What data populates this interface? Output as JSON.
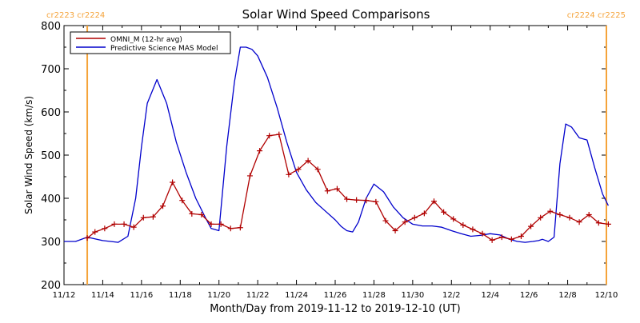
{
  "chart_data": {
    "type": "line",
    "title": "Solar Wind Speed Comparisons",
    "xlabel": "Month/Day from 2019-11-12 to 2019-12-10 (UT)",
    "ylabel": "Solar Wind Speed (km/s)",
    "x_unit": "days since 2019-11-12",
    "xlim": [
      0,
      28
    ],
    "ylim": [
      200,
      800
    ],
    "yticks": [
      200,
      300,
      400,
      500,
      600,
      700,
      800
    ],
    "xticks": [
      {
        "x": 0,
        "label": "11/12"
      },
      {
        "x": 2,
        "label": "11/14"
      },
      {
        "x": 4,
        "label": "11/16"
      },
      {
        "x": 6,
        "label": "11/18"
      },
      {
        "x": 8,
        "label": "11/20"
      },
      {
        "x": 10,
        "label": "11/22"
      },
      {
        "x": 12,
        "label": "11/24"
      },
      {
        "x": 14,
        "label": "11/26"
      },
      {
        "x": 16,
        "label": "11/28"
      },
      {
        "x": 18,
        "label": "11/30"
      },
      {
        "x": 20,
        "label": "12/2"
      },
      {
        "x": 22,
        "label": "12/4"
      },
      {
        "x": 24,
        "label": "12/6"
      },
      {
        "x": 26,
        "label": "12/8"
      },
      {
        "x": 28,
        "label": "12/10"
      }
    ],
    "legend_position": "top-left",
    "grid": false,
    "vlines": [
      {
        "x": 1.2,
        "label": "cr2223 cr2224",
        "color": "#f5a33a",
        "label_side": "left"
      },
      {
        "x": 28.0,
        "label": "cr2224 cr2225",
        "color": "#f5a33a",
        "label_side": "right"
      }
    ],
    "series": [
      {
        "name": "OMNI_M (12-hr avg)",
        "color": "#b00000",
        "marker": "plus",
        "x": [
          1.2,
          1.6,
          2.1,
          2.6,
          3.1,
          3.6,
          4.1,
          4.6,
          5.1,
          5.6,
          6.1,
          6.6,
          7.1,
          7.6,
          8.1,
          8.6,
          9.1,
          9.6,
          10.1,
          10.6,
          11.1,
          11.6,
          12.1,
          12.6,
          13.1,
          13.6,
          14.1,
          14.6,
          15.1,
          15.6,
          16.1,
          16.6,
          17.1,
          17.6,
          18.1,
          18.6,
          19.1,
          19.6,
          20.1,
          20.6,
          21.1,
          21.6,
          22.1,
          22.6,
          23.1,
          23.6,
          24.1,
          24.6,
          25.1,
          25.6,
          26.1,
          26.6,
          27.1,
          27.6,
          28.1
        ],
        "values": [
          308,
          322,
          330,
          340,
          340,
          333,
          355,
          357,
          382,
          437,
          395,
          364,
          362,
          340,
          340,
          330,
          332,
          452,
          510,
          545,
          548,
          455,
          467,
          487,
          467,
          417,
          422,
          398,
          396,
          395,
          392,
          348,
          325,
          345,
          355,
          365,
          393,
          368,
          352,
          338,
          328,
          318,
          303,
          310,
          305,
          312,
          335,
          355,
          370,
          362,
          355,
          345,
          362,
          343,
          340
        ]
      },
      {
        "name": "Predictive Science MAS Model",
        "color": "#0000cc",
        "marker": "none",
        "x": [
          0,
          0.6,
          1.2,
          2.0,
          2.8,
          3.3,
          3.7,
          4.0,
          4.3,
          4.8,
          5.3,
          5.8,
          6.3,
          6.8,
          7.3,
          7.6,
          8.0,
          8.4,
          8.8,
          9.1,
          9.4,
          9.7,
          10.0,
          10.5,
          11.0,
          11.5,
          12.0,
          12.5,
          13.0,
          13.5,
          14.0,
          14.3,
          14.6,
          14.9,
          15.2,
          15.6,
          16.0,
          16.5,
          17.0,
          17.5,
          18.0,
          18.5,
          19.0,
          19.5,
          20.0,
          20.5,
          21.0,
          21.5,
          22.0,
          22.5,
          23.0,
          23.4,
          23.8,
          24.2,
          24.5,
          24.7,
          25.0,
          25.3,
          25.6,
          25.9,
          26.2,
          26.6,
          27.0,
          27.4,
          27.8,
          28.1
        ],
        "values": [
          300,
          300,
          310,
          302,
          298,
          312,
          400,
          520,
          620,
          675,
          620,
          530,
          460,
          400,
          355,
          330,
          325,
          520,
          670,
          750,
          750,
          745,
          730,
          680,
          610,
          530,
          460,
          420,
          390,
          370,
          350,
          335,
          325,
          322,
          345,
          400,
          433,
          415,
          380,
          355,
          340,
          336,
          336,
          333,
          325,
          318,
          312,
          314,
          318,
          315,
          305,
          300,
          298,
          300,
          302,
          305,
          300,
          310,
          480,
          572,
          565,
          540,
          535,
          470,
          410,
          383
        ]
      }
    ]
  }
}
